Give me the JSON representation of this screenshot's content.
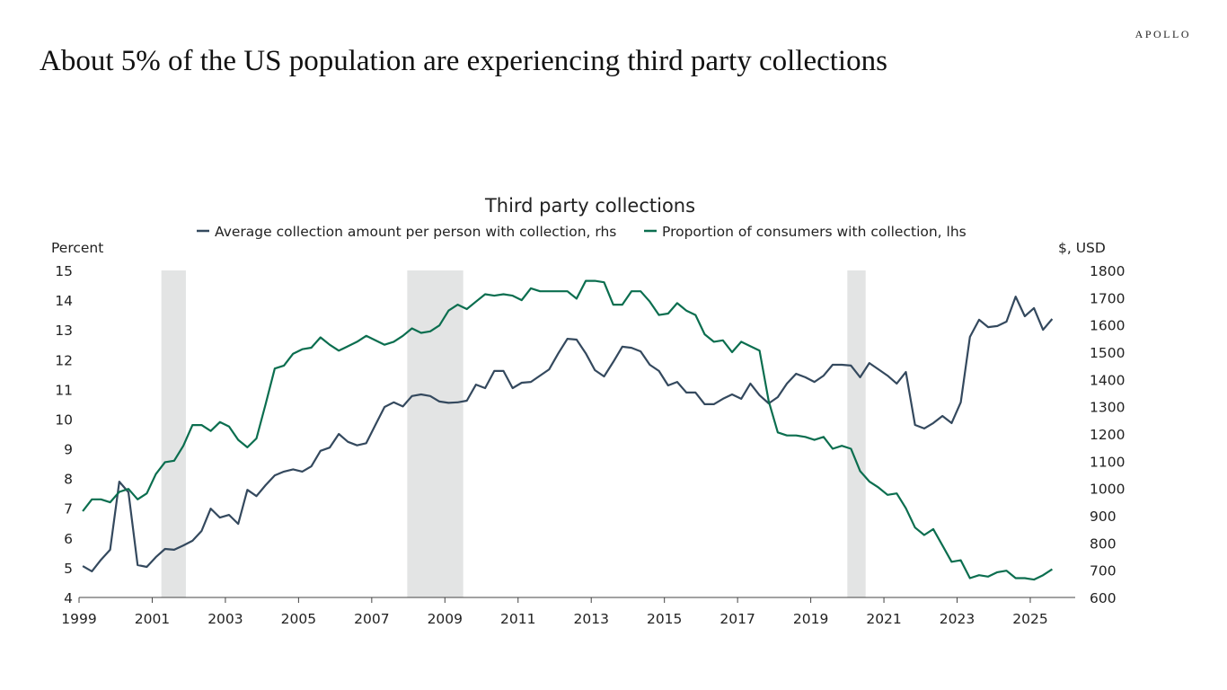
{
  "header": {
    "headline": "About 5% of  the US population are experiencing third party collections",
    "logo": "APOLLO"
  },
  "chart_data": {
    "type": "line",
    "title": "Third party collections",
    "ylabel_left": "Percent",
    "ylabel_right": "$, USD",
    "xlim": [
      1999,
      2026.2
    ],
    "ylim_left": [
      4,
      15
    ],
    "ylim_right": [
      600,
      1800
    ],
    "x_ticks": [
      "1999",
      "2001",
      "2003",
      "2005",
      "2007",
      "2009",
      "2011",
      "2013",
      "2015",
      "2017",
      "2019",
      "2021",
      "2023",
      "2025"
    ],
    "y_ticks_left": [
      4,
      5,
      6,
      7,
      8,
      9,
      10,
      11,
      12,
      13,
      14,
      15
    ],
    "y_ticks_right": [
      600,
      700,
      800,
      900,
      1000,
      1100,
      1200,
      1300,
      1400,
      1500,
      1600,
      1700,
      1800
    ],
    "grid": false,
    "legend_placement": "top",
    "recessions": [
      [
        2001.25,
        2001.92
      ],
      [
        2007.97,
        2009.5
      ],
      [
        2020.0,
        2020.5
      ]
    ],
    "recession_color": "#e3e4e4",
    "frequency": "quarterly",
    "x_start": "1999-Q1",
    "series": [
      {
        "name": "Average collection amount per person with collection, rhs",
        "axis": "right",
        "color": "#34495e",
        "values": [
          715,
          696,
          738,
          775,
          1025,
          986,
          719,
          712,
          748,
          778,
          775,
          791,
          808,
          844,
          926,
          893,
          903,
          870,
          995,
          972,
          1012,
          1048,
          1062,
          1070,
          1062,
          1081,
          1138,
          1150,
          1200,
          1171,
          1158,
          1166,
          1233,
          1299,
          1316,
          1301,
          1339,
          1345,
          1339,
          1319,
          1314,
          1316,
          1322,
          1381,
          1368,
          1431,
          1431,
          1368,
          1388,
          1391,
          1414,
          1437,
          1496,
          1549,
          1546,
          1496,
          1434,
          1411,
          1464,
          1520,
          1516,
          1503,
          1454,
          1431,
          1378,
          1391,
          1352,
          1352,
          1309,
          1309,
          1329,
          1345,
          1329,
          1385,
          1342,
          1312,
          1335,
          1385,
          1421,
          1408,
          1391,
          1414,
          1454,
          1454,
          1451,
          1408,
          1460,
          1437,
          1414,
          1385,
          1427,
          1233,
          1220,
          1240,
          1266,
          1240,
          1316,
          1556,
          1619,
          1592,
          1596,
          1612,
          1704,
          1632,
          1662,
          1582,
          1622
        ]
      },
      {
        "name": "Proportion of consumers with collection, lhs",
        "axis": "left",
        "color": "#0b6e4f",
        "values": [
          6.9,
          7.3,
          7.3,
          7.2,
          7.55,
          7.65,
          7.3,
          7.5,
          8.15,
          8.55,
          8.6,
          9.1,
          9.8,
          9.8,
          9.6,
          9.9,
          9.75,
          9.3,
          9.05,
          9.35,
          10.5,
          11.7,
          11.8,
          12.2,
          12.35,
          12.4,
          12.75,
          12.5,
          12.3,
          12.45,
          12.6,
          12.8,
          12.65,
          12.5,
          12.6,
          12.8,
          13.05,
          12.9,
          12.95,
          13.15,
          13.65,
          13.85,
          13.7,
          13.95,
          14.2,
          14.15,
          14.2,
          14.15,
          14.0,
          14.4,
          14.3,
          14.3,
          14.3,
          14.3,
          14.05,
          14.65,
          14.65,
          14.6,
          13.85,
          13.85,
          14.3,
          14.3,
          13.95,
          13.5,
          13.55,
          13.9,
          13.65,
          13.5,
          12.85,
          12.6,
          12.65,
          12.25,
          12.6,
          12.45,
          12.3,
          10.6,
          9.55,
          9.45,
          9.45,
          9.4,
          9.3,
          9.4,
          9.0,
          9.1,
          9.0,
          8.25,
          7.9,
          7.7,
          7.45,
          7.5,
          7.0,
          6.35,
          6.1,
          6.3,
          5.75,
          5.2,
          5.25,
          4.65,
          4.75,
          4.7,
          4.85,
          4.9,
          4.65,
          4.65,
          4.6,
          4.75,
          4.95
        ]
      }
    ]
  }
}
